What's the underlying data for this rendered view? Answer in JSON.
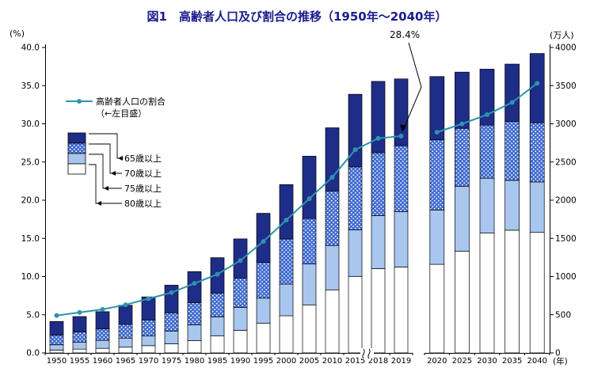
{
  "title": "図1　高齢者人口及び割合の推移（1950年～2040年）",
  "axes": {
    "left_unit": "(%)",
    "right_unit": "(万人)",
    "x_unit": "(年)",
    "left_ticks": [
      "0.0",
      "5.0",
      "10.0",
      "15.0",
      "20.0",
      "25.0",
      "30.0",
      "35.0",
      "40.0"
    ],
    "right_ticks": [
      "0",
      "500",
      "1000",
      "1500",
      "2000",
      "2500",
      "3000",
      "3500",
      "4000"
    ]
  },
  "legend": {
    "line_label_line1": "高齢者人口の割合",
    "line_label_line2": "（←左目盛）",
    "age_groups": [
      "65歳以上",
      "70歳以上",
      "75歳以上",
      "80歳以上"
    ]
  },
  "annotation": {
    "label": "28.4%",
    "points_to_year": "2019"
  },
  "colors": {
    "bar_65_69": "#1e2d87",
    "bar_70_74": "#3f6bd0",
    "bar_75_79": "#a8c6ee",
    "bar_80plus": "#ffffff",
    "ratio_line": "#2f93af",
    "axis": "#000000",
    "title_text": "#1b1b8e"
  },
  "chart_data": {
    "type": "bar",
    "subtype": "stacked-bars-with-ratio-line",
    "title": "図1　高齢者人口及び割合の推移（1950年～2040年）",
    "grid": false,
    "legend_position": "upper-left-inside",
    "ylim_left_percent": [
      0,
      40
    ],
    "ylim_right_10k_persons": [
      0,
      4000
    ],
    "x_break_between": [
      "2015",
      "2018"
    ],
    "panel_split_index": 16,
    "categories": [
      "1950",
      "1955",
      "1960",
      "1965",
      "1970",
      "1975",
      "1980",
      "1985",
      "1990",
      "1995",
      "2000",
      "2005",
      "2010",
      "2015",
      "2018",
      "2019",
      "2020",
      "2025",
      "2030",
      "2035",
      "2040"
    ],
    "series_cumulative_10k_persons": {
      "age65plus": [
        411,
        476,
        540,
        624,
        733,
        887,
        1065,
        1247,
        1493,
        1828,
        2204,
        2576,
        2948,
        3387,
        3556,
        3588,
        3619,
        3677,
        3716,
        3782,
        3921
      ],
      "age70plus": [
        234,
        273,
        314,
        372,
        432,
        525,
        659,
        781,
        981,
        1187,
        1492,
        1760,
        2121,
        2437,
        2621,
        2715,
        2791,
        2941,
        2983,
        3032,
        3013
      ],
      "age75plus": [
        106,
        139,
        164,
        194,
        221,
        284,
        366,
        471,
        597,
        717,
        900,
        1164,
        1407,
        1613,
        1798,
        1849,
        1872,
        2180,
        2288,
        2260,
        2239
      ],
      "age80plus": [
        37,
        50,
        60,
        75,
        95,
        120,
        162,
        222,
        296,
        388,
        486,
        629,
        826,
        1002,
        1104,
        1125,
        1160,
        1331,
        1569,
        1607,
        1578
      ]
    },
    "ratio_percent_65plus": [
      4.9,
      5.3,
      5.7,
      6.3,
      7.1,
      7.9,
      9.1,
      10.3,
      12.1,
      14.6,
      17.4,
      20.2,
      23.0,
      26.6,
      28.1,
      28.4,
      28.9,
      30.0,
      31.2,
      32.8,
      35.3
    ]
  }
}
